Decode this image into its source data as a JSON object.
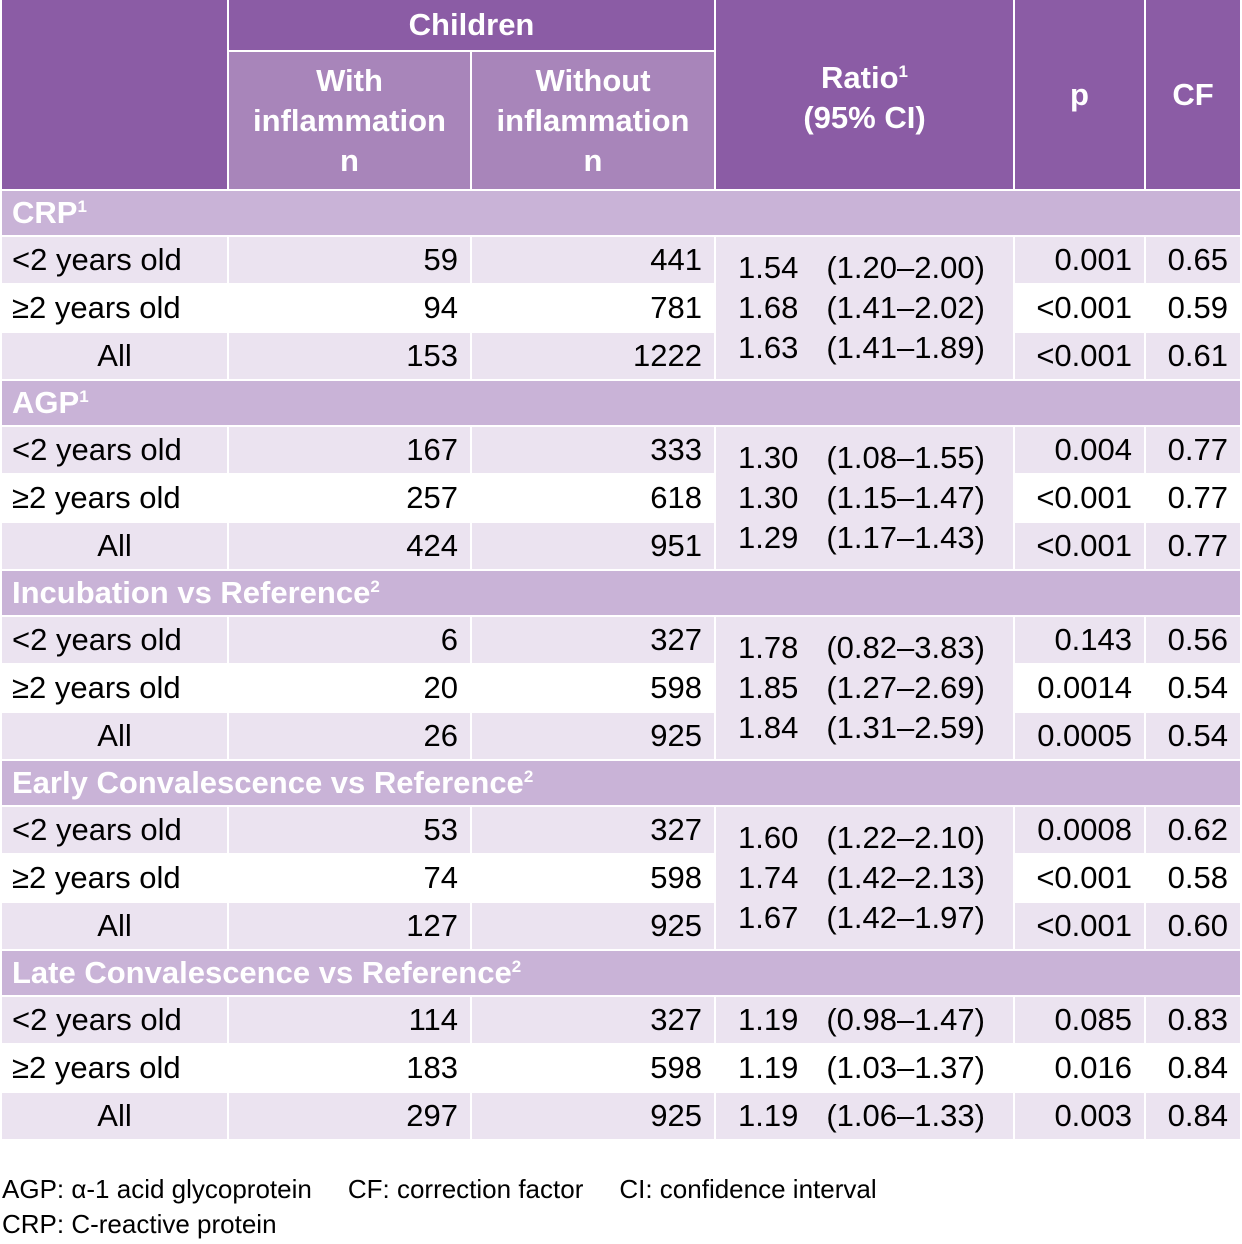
{
  "header": {
    "group": "Children",
    "with_col": [
      "With",
      "inflammation",
      "n"
    ],
    "without_col": [
      "Without",
      "inflammation",
      "n"
    ],
    "ratio": "Ratio",
    "ratio_sup": "1",
    "ratio_ci": "(95% CI)",
    "p": "p",
    "cf": "CF"
  },
  "sections": [
    {
      "title": "CRP",
      "sup": "1",
      "merged": true,
      "rows": [
        {
          "label": "<2 years old",
          "with": "59",
          "without": "441",
          "ratio": "1.54",
          "ci": "(1.20–2.00)",
          "p": "0.001",
          "cf": "0.65"
        },
        {
          "label": "≥2 years old",
          "with": "94",
          "without": "781",
          "ratio": "1.68",
          "ci": "(1.41–2.02)",
          "p": "<0.001",
          "cf": "0.59"
        },
        {
          "label": "All",
          "with": "153",
          "without": "1222",
          "ratio": "1.63",
          "ci": "(1.41–1.89)",
          "p": "<0.001",
          "cf": "0.61"
        }
      ]
    },
    {
      "title": "AGP",
      "sup": "1",
      "merged": true,
      "rows": [
        {
          "label": "<2 years old",
          "with": "167",
          "without": "333",
          "ratio": "1.30",
          "ci": "(1.08–1.55)",
          "p": "0.004",
          "cf": "0.77"
        },
        {
          "label": "≥2 years old",
          "with": "257",
          "without": "618",
          "ratio": "1.30",
          "ci": "(1.15–1.47)",
          "p": "<0.001",
          "cf": "0.77"
        },
        {
          "label": "All",
          "with": "424",
          "without": "951",
          "ratio": "1.29",
          "ci": "(1.17–1.43)",
          "p": "<0.001",
          "cf": "0.77"
        }
      ]
    },
    {
      "title": "Incubation vs Reference",
      "sup": "2",
      "merged": true,
      "rows": [
        {
          "label": "<2 years old",
          "with": "6",
          "without": "327",
          "ratio": "1.78",
          "ci": "(0.82–3.83)",
          "p": "0.143",
          "cf": "0.56"
        },
        {
          "label": "≥2 years old",
          "with": "20",
          "without": "598",
          "ratio": "1.85",
          "ci": "(1.27–2.69)",
          "p": "0.0014",
          "cf": "0.54"
        },
        {
          "label": "All",
          "with": "26",
          "without": "925",
          "ratio": "1.84",
          "ci": "(1.31–2.59)",
          "p": "0.0005",
          "cf": "0.54"
        }
      ]
    },
    {
      "title": "Early Convalescence vs Reference",
      "sup": "2",
      "merged": true,
      "rows": [
        {
          "label": "<2 years old",
          "with": "53",
          "without": "327",
          "ratio": "1.60",
          "ci": "(1.22–2.10)",
          "p": "0.0008",
          "cf": "0.62"
        },
        {
          "label": "≥2 years old",
          "with": "74",
          "without": "598",
          "ratio": "1.74",
          "ci": "(1.42–2.13)",
          "p": "<0.001",
          "cf": "0.58"
        },
        {
          "label": "All",
          "with": "127",
          "without": "925",
          "ratio": "1.67",
          "ci": "(1.42–1.97)",
          "p": "<0.001",
          "cf": "0.60"
        }
      ]
    },
    {
      "title": "Late Convalescence vs Reference",
      "sup": "2",
      "merged": false,
      "rows": [
        {
          "label": "<2 years old",
          "with": "114",
          "without": "327",
          "ratio": "1.19",
          "ci": "(0.98–1.47)",
          "p": "0.085",
          "cf": "0.83"
        },
        {
          "label": "≥2 years old",
          "with": "183",
          "without": "598",
          "ratio": "1.19",
          "ci": "(1.03–1.37)",
          "p": "0.016",
          "cf": "0.84"
        },
        {
          "label": "All",
          "with": "297",
          "without": "925",
          "ratio": "1.19",
          "ci": "(1.06–1.33)",
          "p": "0.003",
          "cf": "0.84"
        }
      ]
    }
  ],
  "footnotes": {
    "agp": "AGP: α-1 acid glycoprotein",
    "cf": "CF:  correction factor",
    "ci": "CI: confidence interval",
    "crp": "CRP: C-reactive protein"
  }
}
